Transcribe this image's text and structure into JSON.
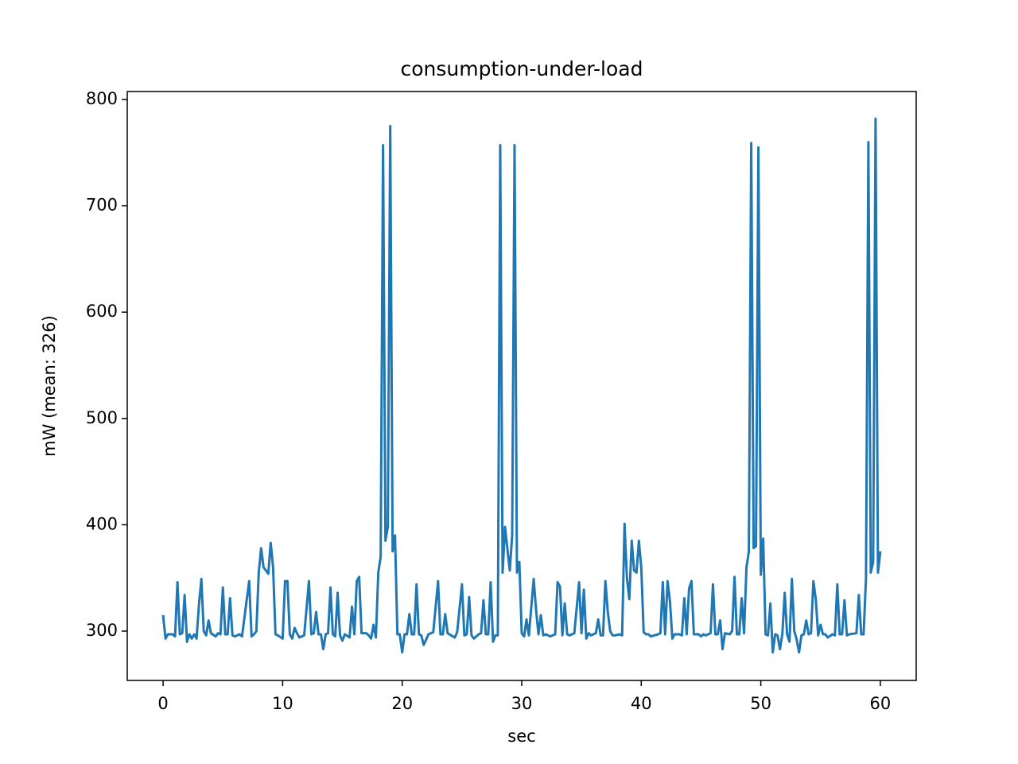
{
  "chart_data": {
    "type": "line",
    "title": "consumption-under-load",
    "x_label": "sec",
    "y_label": "mW (mean: 326)",
    "x": [
      0,
      0.2,
      0.4,
      0.8,
      1.0,
      1.2,
      1.4,
      1.6,
      1.8,
      2.0,
      2.2,
      2.4,
      2.6,
      2.8,
      3.0,
      3.2,
      3.4,
      3.6,
      3.8,
      4.0,
      4.4,
      4.6,
      4.8,
      5.0,
      5.2,
      5.4,
      5.6,
      5.8,
      6.0,
      6.4,
      6.6,
      7.0,
      7.2,
      7.4,
      7.6,
      7.8,
      8.0,
      8.2,
      8.4,
      8.8,
      9.0,
      9.2,
      9.4,
      9.6,
      10.0,
      10.2,
      10.4,
      10.6,
      10.8,
      11.0,
      11.2,
      11.4,
      11.8,
      12.2,
      12.4,
      12.6,
      12.8,
      13.0,
      13.2,
      13.4,
      13.6,
      13.8,
      14.0,
      14.2,
      14.4,
      14.6,
      14.8,
      15.0,
      15.2,
      15.6,
      15.8,
      16.0,
      16.2,
      16.4,
      16.6,
      17.0,
      17.2,
      17.4,
      17.6,
      17.8,
      18.0,
      18.2,
      18.4,
      18.6,
      18.8,
      19.0,
      19.2,
      19.4,
      19.6,
      19.8,
      20.0,
      20.2,
      20.4,
      20.6,
      20.8,
      21.0,
      21.2,
      21.4,
      21.6,
      21.8,
      22.0,
      22.2,
      22.6,
      23.0,
      23.2,
      23.4,
      23.6,
      23.8,
      24.4,
      24.6,
      25.0,
      25.2,
      25.4,
      25.6,
      25.8,
      26.0,
      26.4,
      26.6,
      26.8,
      27.0,
      27.2,
      27.4,
      27.6,
      27.8,
      28.0,
      28.2,
      28.4,
      28.6,
      29.0,
      29.2,
      29.4,
      29.6,
      29.8,
      30.0,
      30.2,
      30.4,
      30.6,
      31.0,
      31.2,
      31.4,
      31.6,
      31.8,
      32.0,
      32.4,
      32.8,
      33.0,
      33.2,
      33.4,
      33.6,
      33.8,
      34.0,
      34.4,
      34.8,
      35.0,
      35.2,
      35.4,
      35.6,
      35.8,
      36.2,
      36.4,
      36.6,
      36.8,
      37.0,
      37.2,
      37.4,
      37.6,
      37.8,
      38.2,
      38.4,
      38.6,
      38.8,
      39.0,
      39.2,
      39.4,
      39.6,
      39.8,
      40.0,
      40.2,
      40.4,
      40.6,
      40.8,
      41.4,
      41.6,
      41.8,
      42.0,
      42.2,
      42.4,
      42.6,
      42.8,
      43.2,
      43.4,
      43.6,
      43.8,
      44.0,
      44.2,
      44.4,
      44.8,
      45.0,
      45.2,
      45.4,
      45.8,
      46.0,
      46.2,
      46.4,
      46.6,
      46.8,
      47.0,
      47.4,
      47.6,
      47.8,
      48.0,
      48.2,
      48.4,
      48.6,
      48.8,
      49.0,
      49.2,
      49.4,
      49.6,
      49.8,
      50.0,
      50.2,
      50.4,
      50.6,
      50.8,
      51.0,
      51.2,
      51.4,
      51.6,
      51.8,
      52.0,
      52.2,
      52.4,
      52.6,
      52.8,
      53.0,
      53.2,
      53.4,
      53.6,
      53.8,
      54.0,
      54.2,
      54.4,
      54.6,
      54.8,
      55.0,
      55.2,
      55.4,
      55.6,
      56.0,
      56.2,
      56.4,
      56.6,
      56.8,
      57.0,
      57.2,
      57.4,
      58.0,
      58.2,
      58.4,
      58.6,
      58.8,
      59.0,
      59.2,
      59.4,
      59.6,
      59.8,
      60.0
    ],
    "series": [
      {
        "color": "#1f77b4",
        "values": [
          315,
          293,
          297,
          297,
          295,
          346,
          297,
          298,
          334,
          290,
          297,
          293,
          297,
          293,
          325,
          349,
          300,
          296,
          310,
          298,
          295,
          298,
          297,
          341,
          297,
          297,
          331,
          296,
          295,
          297,
          295,
          330,
          347,
          295,
          297,
          300,
          355,
          378,
          360,
          354,
          383,
          360,
          297,
          296,
          293,
          347,
          347,
          297,
          293,
          303,
          298,
          294,
          296,
          347,
          297,
          298,
          318,
          297,
          297,
          283,
          297,
          298,
          341,
          297,
          295,
          336,
          296,
          291,
          297,
          294,
          323,
          297,
          347,
          351,
          298,
          298,
          296,
          293,
          306,
          294,
          355,
          370,
          757,
          385,
          398,
          775,
          375,
          390,
          297,
          297,
          280,
          297,
          297,
          316,
          297,
          297,
          344,
          297,
          296,
          287,
          292,
          297,
          299,
          347,
          297,
          297,
          316,
          298,
          294,
          299,
          344,
          296,
          297,
          332,
          296,
          293,
          297,
          298,
          329,
          297,
          297,
          346,
          290,
          296,
          296,
          757,
          355,
          398,
          357,
          390,
          757,
          355,
          365,
          298,
          295,
          311,
          296,
          349,
          320,
          297,
          315,
          296,
          297,
          295,
          297,
          346,
          342,
          296,
          326,
          297,
          296,
          298,
          346,
          298,
          339,
          293,
          298,
          296,
          298,
          311,
          296,
          296,
          347,
          318,
          300,
          296,
          296,
          297,
          296,
          401,
          350,
          330,
          385,
          357,
          355,
          385,
          360,
          299,
          297,
          297,
          295,
          297,
          298,
          346,
          297,
          347,
          328,
          293,
          297,
          297,
          296,
          331,
          297,
          340,
          347,
          297,
          297,
          295,
          297,
          296,
          298,
          344,
          297,
          297,
          310,
          283,
          298,
          297,
          300,
          351,
          297,
          297,
          331,
          298,
          360,
          375,
          759,
          378,
          380,
          755,
          353,
          387,
          297,
          296,
          326,
          280,
          297,
          296,
          283,
          297,
          336,
          297,
          290,
          349,
          300,
          292,
          280,
          296,
          297,
          310,
          297,
          298,
          347,
          330,
          296,
          306,
          297,
          297,
          294,
          297,
          296,
          344,
          297,
          297,
          329,
          296,
          297,
          298,
          334,
          297,
          297,
          350,
          760,
          355,
          365,
          782,
          355,
          375
        ]
      }
    ],
    "xlim": [
      -3,
      63
    ],
    "ylim": [
      253.6,
      807.5
    ],
    "xticks": [
      0,
      10,
      20,
      30,
      40,
      50,
      60
    ],
    "yticks": [
      300,
      400,
      500,
      600,
      700,
      800
    ]
  }
}
